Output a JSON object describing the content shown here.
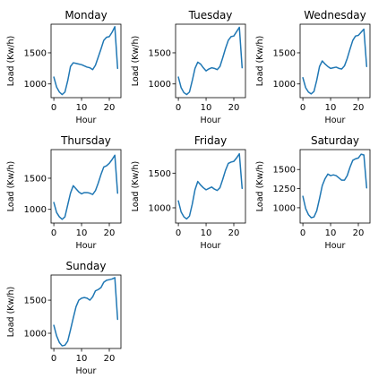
{
  "chart_data": [
    {
      "type": "line",
      "title": "Monday",
      "xlabel": "Hour",
      "ylabel": "Load (Kw/h)",
      "xlim": [
        -1,
        24.2
      ],
      "ylim": [
        780,
        1960
      ],
      "xticks": [
        0,
        10,
        20
      ],
      "yticks": [
        1000,
        1500
      ],
      "ytick_labels": [
        "1000",
        "1500"
      ],
      "xtick_labels": [
        "0",
        "10",
        "20"
      ],
      "grid": false,
      "line_color": "#1f77b4",
      "series": [
        {
          "x": [
            0,
            1,
            2,
            3,
            4,
            5,
            6,
            7,
            8,
            9,
            10,
            11,
            12,
            13,
            14,
            15,
            16,
            17,
            18,
            19,
            20,
            21,
            22,
            23
          ],
          "values": [
            1110,
            950,
            870,
            830,
            870,
            1050,
            1280,
            1340,
            1330,
            1320,
            1310,
            1290,
            1270,
            1260,
            1230,
            1300,
            1430,
            1560,
            1700,
            1750,
            1760,
            1830,
            1920,
            1250
          ]
        }
      ]
    },
    {
      "type": "line",
      "title": "Tuesday",
      "xlabel": "Hour",
      "ylabel": "Load (Kw/h)",
      "xlim": [
        -1,
        24.2
      ],
      "ylim": [
        780,
        1960
      ],
      "xticks": [
        0,
        10,
        20
      ],
      "yticks": [
        1000,
        1500
      ],
      "ytick_labels": [
        "1000",
        "1500"
      ],
      "xtick_labels": [
        "0",
        "10",
        "20"
      ],
      "grid": false,
      "line_color": "#1f77b4",
      "series": [
        {
          "x": [
            0,
            1,
            2,
            3,
            4,
            5,
            6,
            7,
            8,
            9,
            10,
            11,
            12,
            13,
            14,
            15,
            16,
            17,
            18,
            19,
            20,
            21,
            22,
            23
          ],
          "values": [
            1110,
            940,
            860,
            830,
            870,
            1050,
            1250,
            1350,
            1320,
            1260,
            1210,
            1240,
            1260,
            1250,
            1230,
            1280,
            1420,
            1570,
            1700,
            1760,
            1770,
            1840,
            1910,
            1260
          ]
        }
      ]
    },
    {
      "type": "line",
      "title": "Wednesday",
      "xlabel": "Hour",
      "ylabel": "Load (Kw/h)",
      "xlim": [
        -1,
        24.2
      ],
      "ylim": [
        780,
        1960
      ],
      "xticks": [
        0,
        10,
        20
      ],
      "yticks": [
        1000,
        1500
      ],
      "ytick_labels": [
        "1000",
        "1500"
      ],
      "xtick_labels": [
        "0",
        "10",
        "20"
      ],
      "grid": false,
      "line_color": "#1f77b4",
      "series": [
        {
          "x": [
            0,
            1,
            2,
            3,
            4,
            5,
            6,
            7,
            8,
            9,
            10,
            11,
            12,
            13,
            14,
            15,
            16,
            17,
            18,
            19,
            20,
            21,
            22,
            23
          ],
          "values": [
            1100,
            940,
            870,
            840,
            880,
            1060,
            1280,
            1370,
            1320,
            1280,
            1250,
            1260,
            1270,
            1250,
            1240,
            1290,
            1410,
            1560,
            1700,
            1770,
            1780,
            1830,
            1880,
            1280
          ]
        }
      ]
    },
    {
      "type": "line",
      "title": "Thursday",
      "xlabel": "Hour",
      "ylabel": "Load (Kw/h)",
      "xlim": [
        -1,
        24.2
      ],
      "ylim": [
        780,
        1960
      ],
      "xticks": [
        0,
        10,
        20
      ],
      "yticks": [
        1000,
        1500
      ],
      "ytick_labels": [
        "1000",
        "1500"
      ],
      "xtick_labels": [
        "0",
        "10",
        "20"
      ],
      "grid": false,
      "line_color": "#1f77b4",
      "series": [
        {
          "x": [
            0,
            1,
            2,
            3,
            4,
            5,
            6,
            7,
            8,
            9,
            10,
            11,
            12,
            13,
            14,
            15,
            16,
            17,
            18,
            19,
            20,
            21,
            22,
            23
          ],
          "values": [
            1110,
            950,
            880,
            840,
            880,
            1070,
            1260,
            1380,
            1330,
            1280,
            1250,
            1270,
            1270,
            1260,
            1240,
            1300,
            1420,
            1560,
            1680,
            1700,
            1740,
            1800,
            1870,
            1260
          ]
        }
      ]
    },
    {
      "type": "line",
      "title": "Friday",
      "xlabel": "Hour",
      "ylabel": "Load (Kw/h)",
      "xlim": [
        -1,
        24.2
      ],
      "ylim": [
        780,
        1840
      ],
      "xticks": [
        0,
        10,
        20
      ],
      "yticks": [
        1000,
        1500
      ],
      "ytick_labels": [
        "1000",
        "1500"
      ],
      "xtick_labels": [
        "0",
        "10",
        "20"
      ],
      "grid": false,
      "line_color": "#1f77b4",
      "series": [
        {
          "x": [
            0,
            1,
            2,
            3,
            4,
            5,
            6,
            7,
            8,
            9,
            10,
            11,
            12,
            13,
            14,
            15,
            16,
            17,
            18,
            19,
            20,
            21,
            22,
            23
          ],
          "values": [
            1100,
            940,
            870,
            840,
            880,
            1050,
            1260,
            1380,
            1330,
            1290,
            1260,
            1280,
            1300,
            1270,
            1250,
            1290,
            1410,
            1540,
            1640,
            1660,
            1670,
            1720,
            1780,
            1280
          ]
        }
      ]
    },
    {
      "type": "line",
      "title": "Saturday",
      "xlabel": "Hour",
      "ylabel": "Load (Kw/h)",
      "xlim": [
        -1,
        24.2
      ],
      "ylim": [
        800,
        1760
      ],
      "xticks": [
        0,
        10,
        20
      ],
      "yticks": [
        1000,
        1250,
        1500
      ],
      "ytick_labels": [
        "1000",
        "1250",
        "1500"
      ],
      "xtick_labels": [
        "0",
        "10",
        "20"
      ],
      "grid": false,
      "line_color": "#1f77b4",
      "series": [
        {
          "x": [
            0,
            1,
            2,
            3,
            4,
            5,
            6,
            7,
            8,
            9,
            10,
            11,
            12,
            13,
            14,
            15,
            16,
            17,
            18,
            19,
            20,
            21,
            22,
            23
          ],
          "values": [
            1150,
            990,
            910,
            870,
            880,
            960,
            1120,
            1290,
            1380,
            1440,
            1420,
            1430,
            1420,
            1390,
            1360,
            1360,
            1420,
            1530,
            1620,
            1640,
            1650,
            1700,
            1690,
            1260
          ]
        }
      ]
    },
    {
      "type": "line",
      "title": "Sunday",
      "xlabel": "Hour",
      "ylabel": "Load (Kw/h)",
      "xlim": [
        -1,
        24.2
      ],
      "ylim": [
        770,
        1880
      ],
      "xticks": [
        0,
        10,
        20
      ],
      "yticks": [
        1000,
        1500
      ],
      "ytick_labels": [
        "1000",
        "1500"
      ],
      "xtick_labels": [
        "0",
        "10",
        "20"
      ],
      "grid": false,
      "line_color": "#1f77b4",
      "series": [
        {
          "x": [
            0,
            1,
            2,
            3,
            4,
            5,
            6,
            7,
            8,
            9,
            10,
            11,
            12,
            13,
            14,
            15,
            16,
            17,
            18,
            19,
            20,
            21,
            22,
            23
          ],
          "values": [
            1120,
            960,
            860,
            810,
            820,
            880,
            1050,
            1230,
            1400,
            1500,
            1530,
            1540,
            1530,
            1500,
            1550,
            1640,
            1660,
            1690,
            1770,
            1800,
            1810,
            1820,
            1840,
            1210
          ]
        }
      ]
    }
  ]
}
